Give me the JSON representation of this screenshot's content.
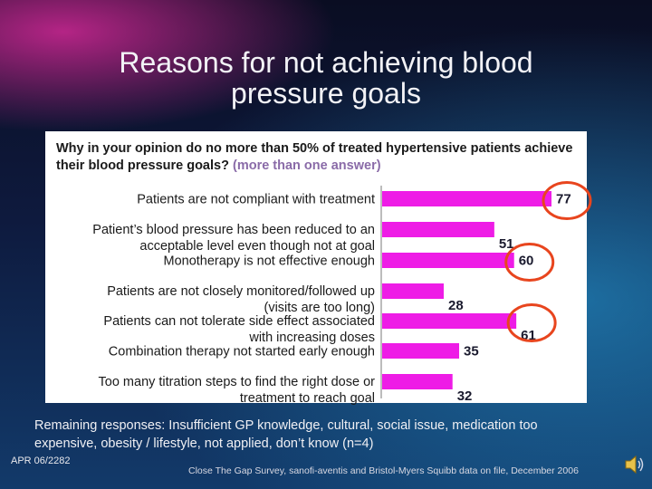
{
  "slide": {
    "title_line1": "Reasons for not achieving blood",
    "title_line2": "pressure goals",
    "question": "Why in your opinion do no more than 50% of treated hypertensive patients achieve their blood pressure goals?",
    "question_note": "(more than one answer)",
    "remaining": "Remaining responses: Insufficient GP knowledge, cultural, social issue, medication too expensive, obesity / lifestyle, not applied, don’t know (n=4)",
    "ref_code": "APR 06/2282",
    "source": "Close The Gap Survey, sanofi-aventis and Bristol-Myers Squibb data on file, December 2006"
  },
  "colors": {
    "bar": "#ee1ce6",
    "highlight_circle": "#e8451e",
    "title_text": "#f2f2f6"
  },
  "chart_data": {
    "type": "bar",
    "orientation": "horizontal",
    "categories": [
      [
        "Patients are not compliant with treatment"
      ],
      [
        "Patient’s blood pressure has been reduced to an",
        "acceptable level even though not at goal"
      ],
      [
        "Monotherapy is not effective enough"
      ],
      [
        "Patients are not closely monitored/followed up",
        "(visits are too long)"
      ],
      [
        "Patients can not tolerate side effect associated",
        "with increasing doses"
      ],
      [
        "Combination therapy not started early enough"
      ],
      [
        "Too many titration steps to find the right dose or",
        "treatment to reach goal"
      ]
    ],
    "values": [
      77,
      51,
      60,
      28,
      61,
      35,
      32
    ],
    "value_labels": [
      "77",
      "51",
      "60",
      "28",
      "61",
      "35",
      "32"
    ],
    "highlighted": [
      0,
      2,
      4
    ],
    "xlim": [
      0,
      80
    ],
    "grid": false,
    "legend": "none"
  }
}
